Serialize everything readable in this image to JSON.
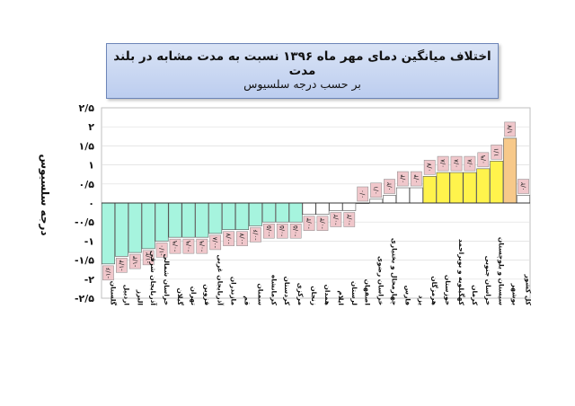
{
  "title": {
    "line1": "اختلاف میانگین دمای مهر ماه ۱۳۹۶ نسبت به مدت مشابه در بلند مدت",
    "line2": "بر حسب درجه سلسیوس"
  },
  "colors": {
    "negative": "#a6f4de",
    "neutral": "#ffffff",
    "positive": "#fff34c",
    "highlight": "#f7c98a",
    "label_box": "#f0c7cb",
    "grid": "#dddddd"
  },
  "chart_data": {
    "type": "bar",
    "title": "اختلاف میانگین دمای مهر ماه ۱۳۹۶ نسبت به مدت مشابه در بلند مدت",
    "subtitle": "بر حسب درجه سلسیوس",
    "xlabel": "",
    "ylabel": "درجه سلسیوس",
    "ylim": [
      -2.5,
      2.5
    ],
    "yticks": [
      "۲/۵",
      "۲",
      "۱/۵",
      "۱",
      "۰/۵",
      "۰",
      "-۰/۵",
      "-۱",
      "-۱/۵",
      "-۲",
      "-۲/۵"
    ],
    "grid": true,
    "categories": [
      "گلستان",
      "اردبیل",
      "البرز",
      "آذربایجان شرقی",
      "خراسان شمالی",
      "گیلان",
      "تهران",
      "قزوین",
      "آذربایجان غربی",
      "مازندران",
      "قم",
      "سمنان",
      "کرمانشاه",
      "کردستان",
      "مرکزی",
      "زنجان",
      "همدان",
      "ایلام",
      "لرستان",
      "اصفهان",
      "خراسان رضوی",
      "چهارمحال و بختیاری",
      "فارس",
      "یزد",
      "هرمزگان",
      "خوزستان",
      "کهگیلویه و بویراحمد",
      "کرمان",
      "خراسان جنوبی",
      "سیستان و بلوچستان",
      "بوشهر",
      "کل کشور"
    ],
    "values": [
      -1.6,
      -1.4,
      -1.3,
      -1.2,
      -1.0,
      -0.9,
      -0.9,
      -0.9,
      -0.8,
      -0.7,
      -0.7,
      -0.6,
      -0.5,
      -0.5,
      -0.5,
      -0.3,
      -0.3,
      -0.2,
      -0.2,
      0.0,
      0.1,
      0.2,
      0.4,
      0.4,
      0.7,
      0.8,
      0.8,
      0.8,
      0.9,
      1.1,
      1.7,
      0.2
    ],
    "data_labels": [
      "-۱/۶",
      "-۱/۴",
      "-۱/۳",
      "-۱/۲",
      "-۱/۰",
      "-۰/۹",
      "-۰/۹",
      "-۰/۹",
      "-۰/۸",
      "-۰/۷",
      "-۰/۷",
      "-۰/۶",
      "-۰/۵",
      "-۰/۵",
      "-۰/۵",
      "-۰/۳",
      "-۰/۳",
      "-۰/۲",
      "-۰/۲",
      "۰/۰",
      "۰/۱",
      "۰/۲",
      "۰/۴",
      "۰/۴",
      "۰/۷",
      "۰/۸",
      "۰/۸",
      "۰/۸",
      "۰/۹",
      "۱/۱",
      "۱/۷",
      "۰/۲"
    ],
    "bar_colors": [
      "negative",
      "negative",
      "negative",
      "negative",
      "negative",
      "negative",
      "negative",
      "negative",
      "negative",
      "negative",
      "negative",
      "negative",
      "negative",
      "negative",
      "negative",
      "neutral",
      "neutral",
      "neutral",
      "neutral",
      "neutral",
      "neutral",
      "neutral",
      "neutral",
      "neutral",
      "positive",
      "positive",
      "positive",
      "positive",
      "positive",
      "positive",
      "highlight",
      "neutral"
    ]
  }
}
